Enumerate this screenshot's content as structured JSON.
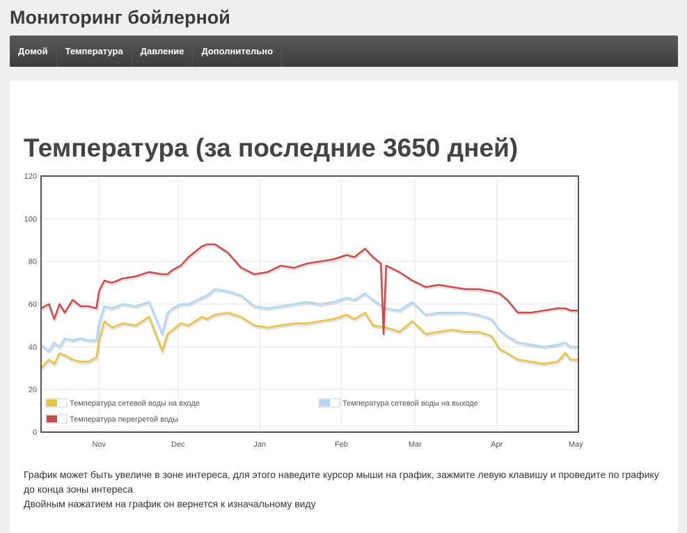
{
  "site": {
    "title": "Мониторинг бойлерной"
  },
  "nav": {
    "items": [
      "Домой",
      "Температура",
      "Давление",
      "Дополнительно"
    ]
  },
  "page": {
    "heading": "Температура (за последние 3650 дней)"
  },
  "hint": {
    "line1": "График может быть увеличе в зоне интереса, для этого наведите курсор мыши на график, зажмите левую клавишу и проведите по графику до конца зоны интереса",
    "line2": "Двойным нажатием на график он вернется к изначальному виду"
  },
  "colors": {
    "inlet": "#edc240",
    "outlet": "#afd8f8",
    "superheated": "#cb4b4b"
  },
  "chart_data": {
    "type": "line",
    "x_labels": [
      "Nov",
      "Dec",
      "Jan",
      "Feb",
      "Mar",
      "Apr",
      "May"
    ],
    "x_tick_days": [
      31,
      61,
      92,
      123,
      151,
      182,
      212
    ],
    "x_range_days": [
      9,
      213
    ],
    "ylim": [
      0,
      120
    ],
    "y_ticks": [
      0,
      20,
      40,
      60,
      80,
      100,
      120
    ],
    "grid": true,
    "legend_position": "bottom inside",
    "series": [
      {
        "name": "Температура сетевой воды на входе",
        "color": "#edc240",
        "x": [
          9,
          12,
          14,
          16,
          18,
          21,
          24,
          27,
          30,
          31,
          33,
          36,
          40,
          45,
          50,
          55,
          57,
          59,
          62,
          65,
          70,
          72,
          75,
          80,
          85,
          90,
          95,
          100,
          105,
          110,
          115,
          120,
          125,
          128,
          132,
          135,
          140,
          145,
          150,
          155,
          160,
          165,
          170,
          175,
          180,
          183,
          186,
          190,
          195,
          200,
          205,
          208,
          210,
          213
        ],
        "y": [
          30,
          34,
          32,
          37,
          36,
          34,
          33,
          33,
          35,
          43,
          52,
          49,
          51,
          50,
          54,
          38,
          46,
          48,
          51,
          50,
          54,
          53,
          55,
          56,
          54,
          50,
          49,
          50,
          51,
          51,
          52,
          53,
          55,
          53,
          56,
          50,
          49,
          47,
          52,
          46,
          47,
          48,
          47,
          47,
          45,
          39,
          37,
          34,
          33,
          32,
          33,
          37,
          34,
          34
        ]
      },
      {
        "name": "Температура сетевой воды на выходе",
        "color": "#afd8f8",
        "x": [
          9,
          12,
          14,
          16,
          18,
          21,
          24,
          27,
          30,
          31,
          33,
          36,
          40,
          45,
          50,
          55,
          57,
          59,
          62,
          65,
          70,
          72,
          75,
          80,
          85,
          90,
          95,
          100,
          105,
          110,
          115,
          120,
          125,
          128,
          132,
          135,
          140,
          145,
          150,
          155,
          160,
          165,
          170,
          175,
          180,
          183,
          186,
          190,
          195,
          200,
          205,
          208,
          210,
          213
        ],
        "y": [
          41,
          38,
          42,
          40,
          44,
          43,
          44,
          43,
          43,
          51,
          59,
          58,
          60,
          59,
          61,
          46,
          56,
          58,
          60,
          60,
          63,
          64,
          67,
          66,
          64,
          59,
          58,
          59,
          60,
          61,
          60,
          61,
          63,
          62,
          65,
          62,
          58,
          57,
          61,
          55,
          56,
          56,
          56,
          55,
          53,
          48,
          45,
          42,
          41,
          40,
          41,
          42,
          40,
          40
        ]
      },
      {
        "name": "Температура перегретой воды",
        "color": "#cb4b4b",
        "x": [
          9,
          12,
          14,
          16,
          18,
          21,
          24,
          27,
          30,
          31,
          33,
          36,
          40,
          45,
          50,
          55,
          57,
          59,
          62,
          65,
          70,
          72,
          75,
          80,
          85,
          90,
          95,
          100,
          105,
          110,
          115,
          120,
          125,
          128,
          132,
          135,
          138,
          139,
          140,
          145,
          150,
          155,
          160,
          165,
          170,
          175,
          180,
          183,
          186,
          190,
          195,
          200,
          205,
          208,
          210,
          213
        ],
        "y": [
          58,
          60,
          53,
          60,
          56,
          62,
          59,
          59,
          58,
          66,
          71,
          70,
          72,
          73,
          75,
          74,
          74,
          76,
          78,
          82,
          87,
          88,
          88,
          84,
          77,
          74,
          75,
          78,
          77,
          79,
          80,
          81,
          83,
          82,
          86,
          82,
          79,
          46,
          78,
          75,
          71,
          68,
          69,
          68,
          67,
          67,
          66,
          65,
          62,
          56,
          56,
          57,
          58,
          58,
          57,
          57
        ]
      }
    ]
  }
}
